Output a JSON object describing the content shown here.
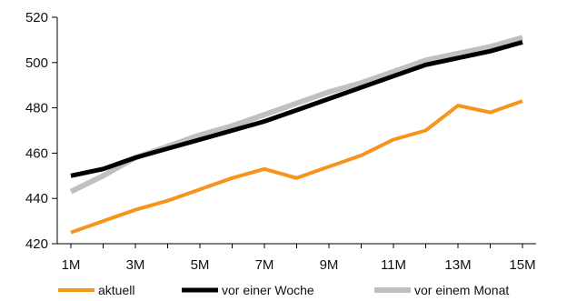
{
  "chart_data": {
    "type": "line",
    "x": [
      "1M",
      "2M",
      "3M",
      "4M",
      "5M",
      "6M",
      "7M",
      "8M",
      "9M",
      "10M",
      "11M",
      "12M",
      "13M",
      "14M",
      "15M"
    ],
    "x_tick_labels": [
      "1M",
      "3M",
      "5M",
      "7M",
      "9M",
      "11M",
      "13M",
      "15M"
    ],
    "ylim": [
      420,
      520
    ],
    "y_ticks": [
      420,
      440,
      460,
      480,
      500,
      520
    ],
    "grid": false,
    "legend_position": "bottom",
    "series": [
      {
        "name": "aktuell",
        "color": "#F7941D",
        "values": [
          425,
          430,
          435,
          439,
          444,
          449,
          453,
          449,
          454,
          459,
          466,
          470,
          481,
          478,
          483
        ]
      },
      {
        "name": "vor einer Woche",
        "color": "#000000",
        "values": [
          450,
          453,
          458,
          462,
          466,
          470,
          474,
          479,
          484,
          489,
          494,
          499,
          502,
          505,
          509
        ]
      },
      {
        "name": "vor einem Monat",
        "color": "#C0C0C0",
        "values": [
          443,
          450,
          458,
          463,
          468,
          472,
          477,
          482,
          487,
          491,
          496,
          501,
          504,
          507,
          511
        ]
      }
    ]
  }
}
